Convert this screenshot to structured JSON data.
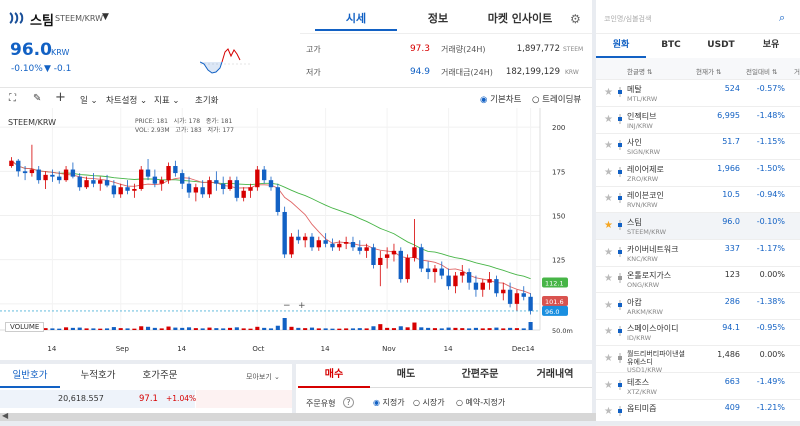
{
  "coin": {
    "name": "스팀",
    "pair": "STEEM/KRW",
    "price": "96.0",
    "unit": "KRW",
    "change_pct": "-0.10%",
    "change_abs": "▼ -0.1"
  },
  "top_tabs": [
    "시세",
    "정보",
    "마켓 인사이트"
  ],
  "stats": {
    "high_label": "고가",
    "high": "97.3",
    "low_label": "저가",
    "low": "94.9",
    "volume_label": "거래량(24H)",
    "volume": "1,897,772",
    "volume_unit": "STEEM",
    "amount_label": "거래대금(24H)",
    "amount": "182,199,129",
    "amount_unit": "KRW"
  },
  "toolbar": {
    "period": "일",
    "chart_settings": "차트설정",
    "indicators": "지표",
    "reset": "초기화",
    "basic_chart": "기본차트",
    "tradingview": "트레이딩뷰"
  },
  "chart_info": {
    "pair": "STEEM/KRW",
    "price_label": "PRICE:",
    "price": "181",
    "open_label": "시가:",
    "open": "178",
    "close_label": "종가:",
    "close": "181",
    "vol_label": "VOL:",
    "vol": "2.93M",
    "high_label": "고가:",
    "high": "183",
    "low_label": "저가:",
    "low": "177",
    "volume_panel": "VOLUME",
    "volume_tick": "50.0m",
    "ma_short_tag": "101.6",
    "ma_long_tag": "112.1",
    "last_tag": "96.0",
    "zoom_minus": "−",
    "zoom_plus": "+"
  },
  "chart_data": {
    "type": "candlestick",
    "yaxis_ticks": [
      200,
      175,
      150,
      125,
      100
    ],
    "xaxis_labels": [
      "14",
      "Sep",
      "14",
      "Oct",
      "14",
      "Nov",
      "14",
      "Dec",
      "14"
    ],
    "last_price": 96.0,
    "ma_short_last": 101.6,
    "ma_long_last": 112.1,
    "ohlc": [
      [
        178,
        183,
        177,
        181
      ],
      [
        181,
        182,
        172,
        175
      ],
      [
        175,
        178,
        170,
        174
      ],
      [
        174,
        190,
        172,
        176
      ],
      [
        176,
        178,
        168,
        170
      ],
      [
        170,
        175,
        165,
        173
      ],
      [
        173,
        176,
        169,
        172
      ],
      [
        172,
        175,
        168,
        170
      ],
      [
        170,
        178,
        169,
        176
      ],
      [
        176,
        180,
        171,
        172
      ],
      [
        172,
        174,
        164,
        166
      ],
      [
        166,
        172,
        165,
        170
      ],
      [
        170,
        174,
        166,
        168
      ],
      [
        168,
        172,
        164,
        170
      ],
      [
        170,
        173,
        166,
        167
      ],
      [
        167,
        170,
        160,
        162
      ],
      [
        162,
        168,
        160,
        166
      ],
      [
        166,
        170,
        162,
        164
      ],
      [
        164,
        168,
        160,
        165
      ],
      [
        165,
        178,
        164,
        176
      ],
      [
        176,
        182,
        170,
        172
      ],
      [
        172,
        176,
        166,
        168
      ],
      [
        168,
        172,
        164,
        170
      ],
      [
        170,
        180,
        168,
        178
      ],
      [
        178,
        181,
        172,
        174
      ],
      [
        174,
        176,
        165,
        168
      ],
      [
        168,
        172,
        160,
        163
      ],
      [
        163,
        168,
        158,
        166
      ],
      [
        166,
        170,
        160,
        162
      ],
      [
        162,
        172,
        160,
        170
      ],
      [
        170,
        175,
        164,
        168
      ],
      [
        168,
        172,
        162,
        165
      ],
      [
        165,
        172,
        164,
        170
      ],
      [
        170,
        172,
        158,
        160
      ],
      [
        160,
        166,
        158,
        164
      ],
      [
        164,
        168,
        160,
        166
      ],
      [
        166,
        178,
        164,
        176
      ],
      [
        176,
        178,
        168,
        170
      ],
      [
        170,
        172,
        164,
        166
      ],
      [
        166,
        168,
        150,
        152
      ],
      [
        152,
        155,
        126,
        128
      ],
      [
        128,
        140,
        126,
        138
      ],
      [
        138,
        142,
        134,
        136
      ],
      [
        136,
        140,
        132,
        138
      ],
      [
        138,
        140,
        130,
        132
      ],
      [
        132,
        138,
        130,
        136
      ],
      [
        136,
        140,
        132,
        134
      ],
      [
        134,
        137,
        130,
        132
      ],
      [
        132,
        136,
        130,
        134
      ],
      [
        134,
        138,
        131,
        135
      ],
      [
        135,
        138,
        130,
        132
      ],
      [
        132,
        136,
        128,
        130
      ],
      [
        130,
        134,
        126,
        132
      ],
      [
        132,
        134,
        120,
        122
      ],
      [
        122,
        130,
        110,
        126
      ],
      [
        126,
        132,
        120,
        128
      ],
      [
        128,
        134,
        124,
        130
      ],
      [
        130,
        132,
        112,
        114
      ],
      [
        114,
        128,
        112,
        126
      ],
      [
        126,
        148,
        124,
        132
      ],
      [
        132,
        134,
        118,
        120
      ],
      [
        120,
        124,
        114,
        118
      ],
      [
        118,
        122,
        112,
        120
      ],
      [
        120,
        124,
        114,
        116
      ],
      [
        116,
        120,
        108,
        110
      ],
      [
        110,
        118,
        106,
        116
      ],
      [
        116,
        122,
        112,
        118
      ],
      [
        118,
        120,
        108,
        112
      ],
      [
        112,
        116,
        104,
        108
      ],
      [
        108,
        114,
        104,
        112
      ],
      [
        112,
        118,
        108,
        114
      ],
      [
        114,
        116,
        104,
        106
      ],
      [
        106,
        112,
        102,
        108
      ],
      [
        108,
        112,
        98,
        100
      ],
      [
        100,
        108,
        96,
        106
      ],
      [
        106,
        110,
        102,
        104
      ],
      [
        104,
        106,
        94,
        96
      ]
    ],
    "volume": [
      12,
      8,
      6,
      30,
      9,
      7,
      6,
      5,
      10,
      8,
      9,
      6,
      6,
      5,
      6,
      11,
      7,
      6,
      5,
      14,
      12,
      8,
      6,
      13,
      9,
      8,
      10,
      7,
      6,
      9,
      7,
      6,
      8,
      10,
      6,
      5,
      12,
      8,
      6,
      16,
      45,
      12,
      8,
      7,
      9,
      6,
      6,
      5,
      5,
      6,
      6,
      7,
      6,
      14,
      22,
      8,
      7,
      14,
      10,
      28,
      10,
      8,
      7,
      6,
      9,
      8,
      7,
      6,
      8,
      6,
      7,
      9,
      6,
      8,
      7,
      6,
      30
    ]
  },
  "order_tabs": {
    "orderbook": "일반호가",
    "cumulative": "누적호가",
    "by_order": "호가주문",
    "view_all": "모아보기"
  },
  "orderbook_row": {
    "qty": "20,618.557",
    "price": "97.1",
    "pct": "+1.04%"
  },
  "trade_tabs": {
    "buy": "매수",
    "sell": "매도",
    "simple": "간편주문",
    "history": "거래내역"
  },
  "order_type": {
    "label": "주문유형",
    "limit": "지정가",
    "market": "시장가",
    "reserve": "예약-지정가"
  },
  "right_panel": {
    "search_placeholder": "코인명/심볼검색",
    "market_tabs": [
      "원화",
      "BTC",
      "USDT",
      "보유"
    ],
    "col_name": "한글명 ⇅",
    "col_price": "현재가 ⇅",
    "col_change": "전일대비 ⇅",
    "col_extra": "거",
    "coins": [
      {
        "name": "메탈",
        "sym": "MTL/KRW",
        "price": "524",
        "change": "-0.57%",
        "dir": "down",
        "fav": false
      },
      {
        "name": "인젝티브",
        "sym": "INJ/KRW",
        "price": "6,995",
        "change": "-1.48%",
        "dir": "down",
        "fav": false
      },
      {
        "name": "사인",
        "sym": "SIGN/KRW",
        "price": "51.7",
        "change": "-1.15%",
        "dir": "down",
        "fav": false
      },
      {
        "name": "레이어제로",
        "sym": "ZRO/KRW",
        "price": "1,966",
        "change": "-1.50%",
        "dir": "down",
        "fav": false
      },
      {
        "name": "레이븐코인",
        "sym": "RVN/KRW",
        "price": "10.5",
        "change": "-0.94%",
        "dir": "down",
        "fav": false
      },
      {
        "name": "스팀",
        "sym": "STEEM/KRW",
        "price": "96.0",
        "change": "-0.10%",
        "dir": "down",
        "fav": true
      },
      {
        "name": "카이버네트워크",
        "sym": "KNC/KRW",
        "price": "337",
        "change": "-1.17%",
        "dir": "down",
        "fav": false
      },
      {
        "name": "온톨로지가스",
        "sym": "ONG/KRW",
        "price": "123",
        "change": "0.00%",
        "dir": "flat",
        "fav": false
      },
      {
        "name": "아캄",
        "sym": "ARKM/KRW",
        "price": "286",
        "change": "-1.38%",
        "dir": "down",
        "fav": false
      },
      {
        "name": "스페이스아이디",
        "sym": "ID/KRW",
        "price": "94.1",
        "change": "-0.95%",
        "dir": "down",
        "fav": false
      },
      {
        "name": "월드리버티파이낸셜유에스디",
        "sym": "USD1/KRW",
        "price": "1,486",
        "change": "0.00%",
        "dir": "flat",
        "fav": false
      },
      {
        "name": "테조스",
        "sym": "XTZ/KRW",
        "price": "663",
        "change": "-1.49%",
        "dir": "down",
        "fav": false
      },
      {
        "name": "옵티미즘",
        "sym": "",
        "price": "409",
        "change": "-1.21%",
        "dir": "down",
        "fav": false
      }
    ]
  }
}
